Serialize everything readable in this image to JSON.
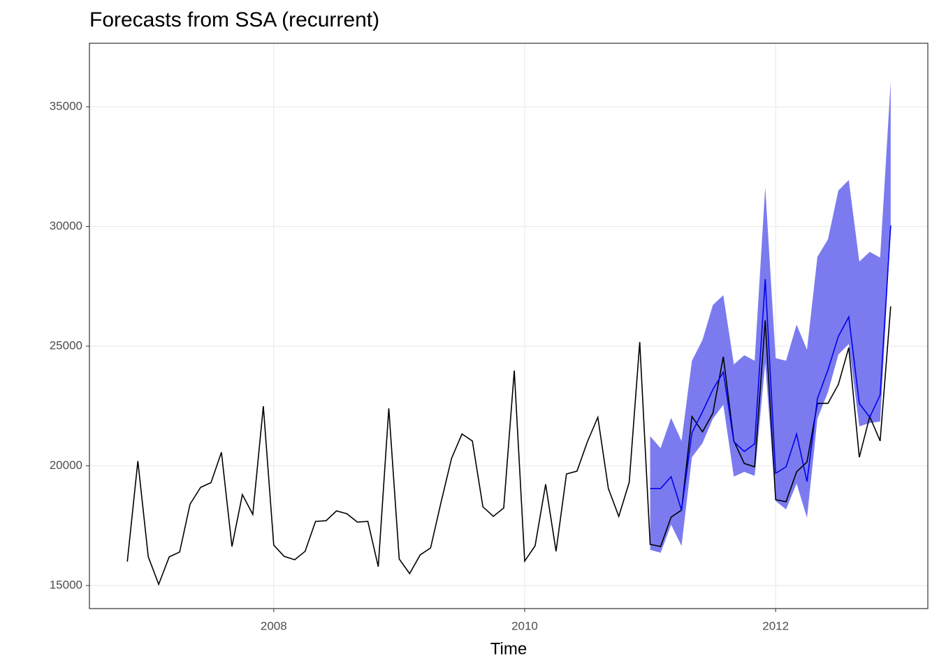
{
  "chart_data": {
    "type": "line",
    "title": "Forecasts from SSA (recurrent)",
    "x_label": "Time",
    "xlim": [
      2006.531,
      2013.213
    ],
    "xticks": [
      2008,
      2010,
      2012
    ],
    "ylim": [
      14038,
      37653
    ],
    "yticks": [
      15000,
      20000,
      25000,
      30000,
      35000
    ],
    "grid": true,
    "band": {
      "color": "#7b7bef",
      "x": [
        2011,
        2011.083,
        2011.167,
        2011.25,
        2011.333,
        2011.417,
        2011.5,
        2011.583,
        2011.667,
        2011.75,
        2011.833,
        2011.917,
        2012,
        2012.083,
        2012.167,
        2012.25,
        2012.333,
        2012.417,
        2012.5,
        2012.583,
        2012.667,
        2012.75,
        2012.833,
        2012.917
      ],
      "upper": [
        21240,
        20740,
        22000,
        21040,
        24390,
        25260,
        26720,
        27130,
        24240,
        24620,
        24390,
        31650,
        24500,
        24390,
        25900,
        24850,
        28730,
        29460,
        31500,
        31940,
        28530,
        28940,
        28700,
        36050
      ],
      "lower": [
        16490,
        16370,
        17540,
        16660,
        20360,
        20950,
        21970,
        22550,
        19550,
        19750,
        19580,
        24300,
        18530,
        18180,
        19260,
        17830,
        21970,
        23080,
        24650,
        25090,
        21650,
        21790,
        21850,
        29840
      ]
    },
    "series": [
      {
        "color": "#000000",
        "x": [
          2006.833,
          2006.917,
          2007,
          2007.083,
          2007.167,
          2007.25,
          2007.333,
          2007.417,
          2007.5,
          2007.583,
          2007.667,
          2007.75,
          2007.833,
          2007.917,
          2008,
          2008.083,
          2008.167,
          2008.25,
          2008.333,
          2008.417,
          2008.5,
          2008.583,
          2008.667,
          2008.75,
          2008.833,
          2008.917,
          2009,
          2009.083,
          2009.167,
          2009.25,
          2009.333,
          2009.417,
          2009.5,
          2009.583,
          2009.667,
          2009.75,
          2009.833,
          2009.917,
          2010,
          2010.083,
          2010.167,
          2010.25,
          2010.333,
          2010.417,
          2010.5,
          2010.583,
          2010.667,
          2010.75,
          2010.833,
          2010.917,
          2011,
          2011.083,
          2011.167,
          2011.25,
          2011.333,
          2011.417,
          2011.5,
          2011.583,
          2011.667,
          2011.75,
          2011.833,
          2011.917,
          2012,
          2012.083,
          2012.167,
          2012.25,
          2012.333,
          2012.417,
          2012.5,
          2012.583,
          2012.667,
          2012.75,
          2012.833,
          2012.917
        ],
        "values": [
          16000,
          20200,
          16200,
          15050,
          16200,
          16400,
          18400,
          19100,
          19300,
          20570,
          16630,
          18800,
          17970,
          22490,
          16690,
          16220,
          16080,
          16430,
          17680,
          17710,
          18120,
          18000,
          17650,
          17680,
          15790,
          22400,
          16110,
          15500,
          16280,
          16570,
          18470,
          20310,
          21330,
          21040,
          18290,
          17890,
          18240,
          23980,
          16020,
          16660,
          19230,
          16430,
          19660,
          19780,
          21010,
          22030,
          19050,
          17890,
          19310,
          25170,
          16720,
          16630,
          17860,
          18150,
          22060,
          21420,
          22200,
          24560,
          21040,
          20100,
          19960,
          26080,
          18590,
          18500,
          19750,
          20160,
          22610,
          22610,
          23400,
          24940,
          20360,
          22060,
          21040,
          26660
        ]
      },
      {
        "color": "#0000ee",
        "x": [
          2011,
          2011.083,
          2011.167,
          2011.25,
          2011.333,
          2011.417,
          2011.5,
          2011.583,
          2011.667,
          2011.75,
          2011.833,
          2011.917,
          2012,
          2012.083,
          2012.167,
          2012.25,
          2012.333,
          2012.417,
          2012.5,
          2012.583,
          2012.667,
          2012.75,
          2012.833,
          2012.917
        ],
        "values": [
          19050,
          19050,
          19550,
          18150,
          21380,
          22260,
          23190,
          23920,
          21010,
          20600,
          20920,
          27800,
          19690,
          19960,
          21330,
          19340,
          22810,
          24010,
          25410,
          26220,
          22610,
          22030,
          22960,
          30040
        ]
      }
    ]
  }
}
